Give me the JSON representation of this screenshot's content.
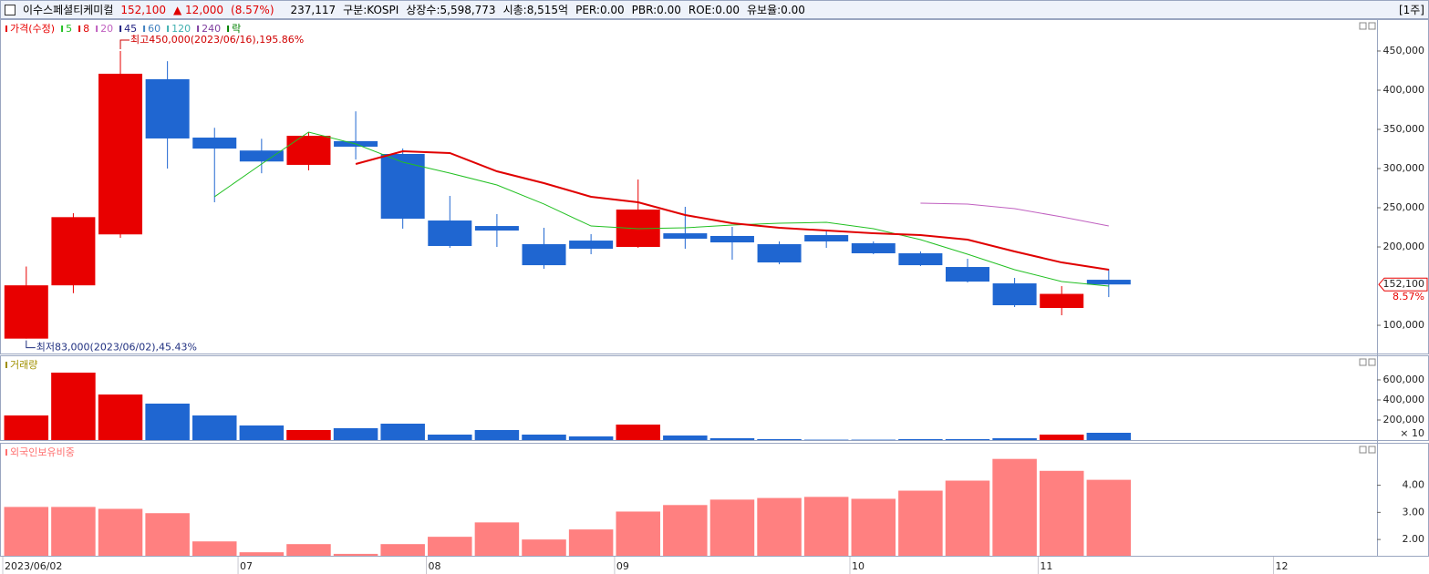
{
  "header": {
    "name": "이수스페셜티케미컬",
    "price": "152,100",
    "change": "▲ 12,000",
    "change_pct": "(8.57%)",
    "volume": "237,117",
    "market": "구분:KOSPI",
    "shares": "상장수:5,598,773",
    "market_cap": "시총:8,515억",
    "per": "PER:0.00",
    "pbr": "PBR:0.00",
    "roe": "ROE:0.00",
    "reserve": "유보율:0.00",
    "period": "[1주]"
  },
  "chart_data": [
    {
      "type": "candlestick",
      "price_label": "가격(수정)",
      "up_color": "#e80000",
      "down_color": "#1f66d1",
      "open": [
        83000,
        151000,
        216000,
        414000,
        339500,
        323000,
        304700,
        335000,
        318600,
        233700,
        226700,
        203500,
        208100,
        200000,
        217400,
        214000,
        203500,
        215100,
        204700,
        191900,
        174400,
        153500,
        122100,
        158100
      ],
      "high": [
        175000,
        243000,
        450000,
        437000,
        352000,
        338000,
        346500,
        373000,
        325600,
        265100,
        241900,
        224400,
        216300,
        286000,
        251200,
        225600,
        207000,
        222100,
        207000,
        194200,
        184900,
        160500,
        150000,
        172100
      ],
      "low": [
        83000,
        141000,
        211600,
        300000,
        257000,
        294000,
        297700,
        311600,
        223300,
        198800,
        200000,
        172100,
        190700,
        198800,
        197700,
        183700,
        177900,
        198800,
        190700,
        175600,
        154600,
        123300,
        112800,
        136000
      ],
      "close": [
        151000,
        238000,
        421000,
        338400,
        325500,
        309000,
        341800,
        327900,
        236000,
        201200,
        220900,
        176700,
        197700,
        247700,
        210500,
        205800,
        180200,
        207000,
        191900,
        176700,
        155800,
        125600,
        140100,
        152100
      ],
      "series": [
        {
          "name": "5",
          "color": "#22c022",
          "values": [
            null,
            null,
            null,
            null,
            264000,
            305800,
            346500,
            331400,
            308100,
            294200,
            279100,
            254700,
            226700,
            223300,
            224400,
            227900,
            230200,
            231400,
            223300,
            209300,
            190700,
            171000,
            155800,
            150000
          ]
        },
        {
          "name": "8",
          "color": "#e00000",
          "values": [
            null,
            null,
            null,
            null,
            null,
            null,
            null,
            305800,
            322100,
            319800,
            296500,
            281400,
            264000,
            257000,
            240700,
            230200,
            224400,
            220900,
            217400,
            215100,
            209300,
            194200,
            180200,
            171000
          ]
        },
        {
          "name": "20",
          "color": "#c060c0",
          "values": [
            null,
            null,
            null,
            null,
            null,
            null,
            null,
            null,
            null,
            null,
            null,
            null,
            null,
            null,
            null,
            null,
            null,
            null,
            null,
            255800,
            254700,
            248800,
            238400,
            226700
          ]
        },
        {
          "name": "45",
          "color": "#202080"
        },
        {
          "name": "60",
          "color": "#4080c0"
        },
        {
          "name": "120",
          "color": "#40b0b0"
        },
        {
          "name": "240",
          "color": "#8040a0"
        },
        {
          "name": "락",
          "color": "#008000"
        }
      ],
      "high_annotation": {
        "text": "최고450,000(2023/06/16),195.86%",
        "color": "#d00000"
      },
      "low_annotation": {
        "text": "최저83,000(2023/06/02),45.43%",
        "color": "#203080"
      },
      "last_pct_label": "8.57%",
      "xlim": [
        -0.5,
        28.7
      ],
      "xticks": [
        {
          "value": 0,
          "label": "2023/06/02"
        },
        {
          "value": 5,
          "label": "07"
        },
        {
          "value": 9,
          "label": "08"
        },
        {
          "value": 13,
          "label": "09"
        },
        {
          "value": 18,
          "label": "10"
        },
        {
          "value": 22,
          "label": "11"
        },
        {
          "value": 27,
          "label": "12"
        }
      ],
      "ylim": [
        64000,
        489500
      ],
      "yticks": [
        {
          "value": 100000,
          "label": "100,000"
        },
        {
          "value": 200000,
          "label": "200,000"
        },
        {
          "value": 250000,
          "label": "250,000"
        },
        {
          "value": 300000,
          "label": "300,000"
        },
        {
          "value": 350000,
          "label": "350,000"
        },
        {
          "value": 400000,
          "label": "400,000"
        },
        {
          "value": 450000,
          "label": "450,000"
        }
      ]
    },
    {
      "type": "bar",
      "title": "거래량",
      "title_color": "#a09000",
      "values": [
        245500,
        672700,
        454500,
        363600,
        245500,
        145500,
        100000,
        118200,
        163600,
        54500,
        100000,
        54500,
        36400,
        154500,
        45500,
        18200,
        9100,
        4000,
        4000,
        9100,
        9100,
        18200,
        54500,
        72700
      ],
      "unit_label": "× 10",
      "ylim": [
        0,
        836000
      ],
      "yticks": [
        {
          "value": 200000,
          "label": "200,000"
        },
        {
          "value": 400000,
          "label": "400,000"
        },
        {
          "value": 600000,
          "label": "600,000"
        }
      ]
    },
    {
      "type": "bar",
      "title": "외국인보유비중",
      "title_color": "#ff7070",
      "color": "#ff8080",
      "values": [
        3.2,
        3.2,
        3.13,
        2.97,
        1.93,
        1.53,
        1.83,
        1.47,
        1.83,
        2.1,
        2.63,
        2.0,
        2.37,
        3.03,
        3.27,
        3.47,
        3.53,
        3.57,
        3.5,
        3.8,
        4.17,
        4.97,
        4.53,
        4.2
      ],
      "ylim": [
        1.4,
        5.53
      ],
      "yticks": [
        {
          "value": 2,
          "label": "2.00"
        },
        {
          "value": 3,
          "label": "3.00"
        },
        {
          "value": 4,
          "label": "4.00"
        }
      ]
    }
  ]
}
